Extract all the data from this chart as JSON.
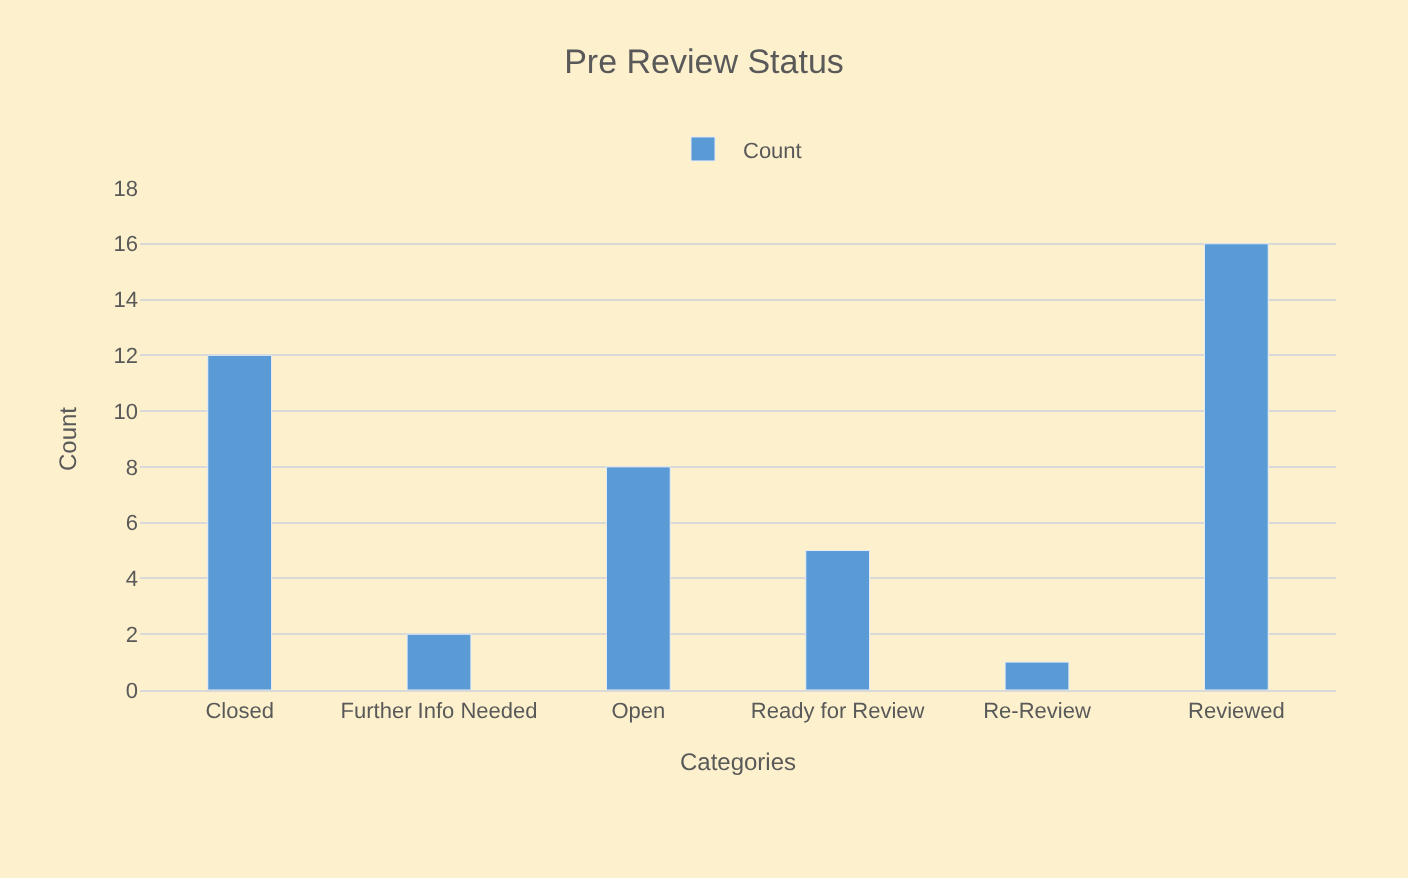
{
  "chart_data": {
    "type": "bar",
    "title": "Pre Review Status",
    "xlabel": "Categories",
    "ylabel": "Count",
    "categories": [
      "Closed",
      "Further Info Needed",
      "Open",
      "Ready for Review",
      "Re-Review",
      "Reviewed"
    ],
    "series": [
      {
        "name": "Count",
        "color": "#5b9bd5",
        "values": [
          12,
          2,
          8,
          5,
          1,
          16
        ]
      }
    ],
    "ylim": [
      0,
      18
    ],
    "yticks": [
      0,
      2,
      4,
      6,
      8,
      10,
      12,
      14,
      16,
      18
    ],
    "grid": "y",
    "legend": "top"
  }
}
